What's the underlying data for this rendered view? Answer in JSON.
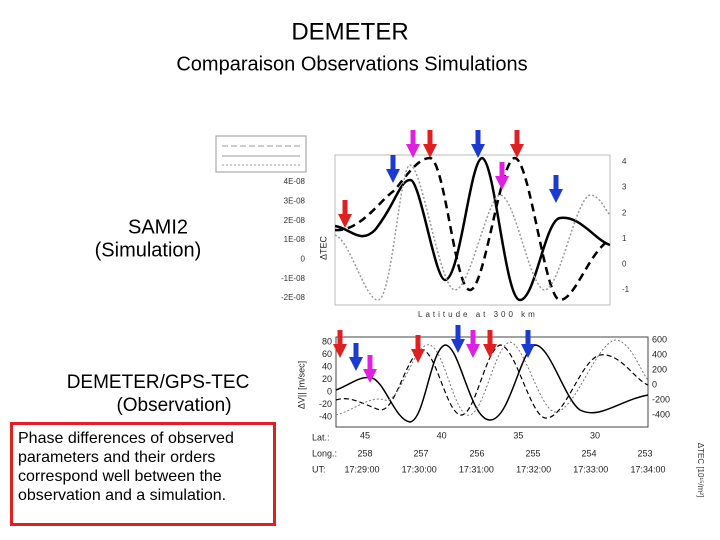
{
  "title": "DEMETER",
  "subtitle": "Comparaison Observations Simulations",
  "simulation_label": {
    "line1": "SAMI2",
    "line2": "(Simulation)"
  },
  "observation_label": {
    "line1": "DEMETER/GPS-TEC",
    "line2": "(Observation)"
  },
  "note": "Phase differences of observed parameters and their orders correspond well between the observation and a simulation.",
  "top_plot": {
    "y_label": "ΔTEC",
    "x_label": "Latitude at 300 km",
    "yticks": [
      "4E-08",
      "3E-08",
      "2E-08",
      "1E-08",
      "0",
      "-1E-08",
      "-2E-08"
    ],
    "y2ticks": [
      "4",
      "3",
      "2",
      "1",
      "0",
      "-1"
    ]
  },
  "bottom_plot": {
    "y_label": "ΔV|| [m/sec]",
    "yticks": [
      "80",
      "60",
      "40",
      "20",
      "0",
      "-20",
      "-40"
    ],
    "y2ticks": [
      "600",
      "400",
      "200",
      "0",
      "-200",
      "-400"
    ],
    "y2_label": "ΔTEC [10¹⁵/m²]",
    "lat_label": "Lat.:",
    "lat": [
      "45",
      "40",
      "35",
      "30"
    ],
    "long_label": "Long.:",
    "long": [
      "258",
      "257",
      "256",
      "255",
      "254",
      "253"
    ],
    "ut_label": "UT:",
    "ut": [
      "17:29:00",
      "17:30:00",
      "17:31:00",
      "17:32:00",
      "17:33:00",
      "17:34:00"
    ]
  }
}
